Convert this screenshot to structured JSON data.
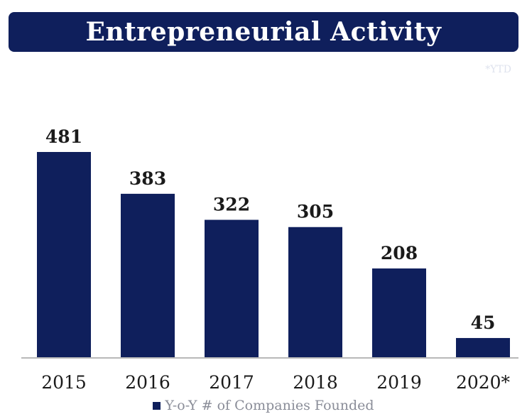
{
  "header": {
    "title": "Entrepreneurial Activity",
    "note": "*YTD"
  },
  "colors": {
    "bar": "#0f1f5c",
    "title_bg": "#0f1f5c",
    "axis": "#b8b8b8",
    "label": "#1a1a1a"
  },
  "chart_data": {
    "type": "bar",
    "title": "Entrepreneurial Activity",
    "categories": [
      "2015",
      "2016",
      "2017",
      "2018",
      "2019",
      "2020*"
    ],
    "series": [
      {
        "name": "Y-o-Y # of Companies Founded",
        "values": [
          481,
          383,
          322,
          305,
          208,
          45
        ]
      }
    ],
    "data_labels": [
      "481",
      "383",
      "322",
      "305",
      "208",
      "45"
    ],
    "ylim": [
      0,
      481
    ],
    "grid": false,
    "legend_position": "bottom",
    "note": "*YTD"
  },
  "legend": {
    "label": "Y-o-Y # of Companies Founded"
  }
}
